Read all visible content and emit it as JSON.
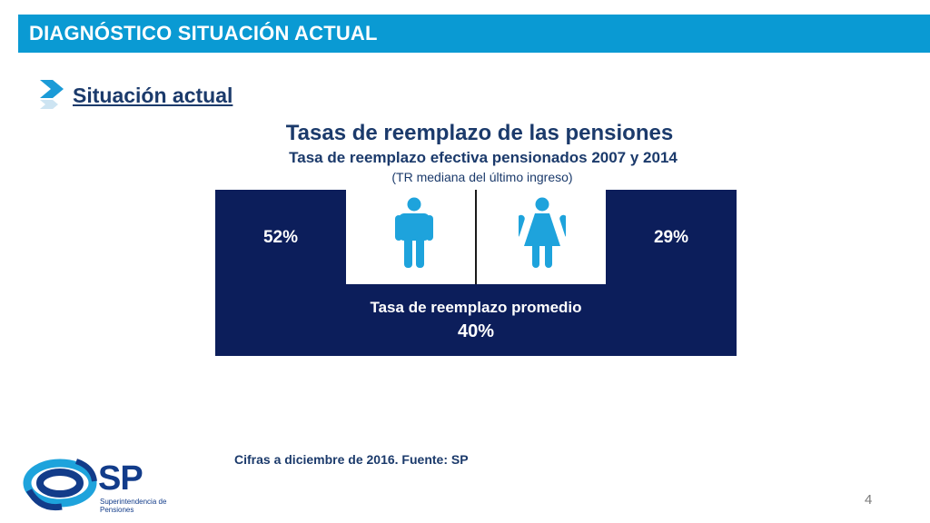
{
  "header": {
    "title": "DIAGNÓSTICO SITUACIÓN ACTUAL"
  },
  "section": {
    "title": "Situación actual",
    "icon": "chevron-right-icon"
  },
  "main": {
    "title": "Tasas de reemplazo de las pensiones",
    "subtitle": "Tasa de reemplazo efectiva pensionados 2007 y 2014",
    "note": "(TR mediana del último ingreso)"
  },
  "panel": {
    "men_rate": "52%",
    "women_rate": "29%",
    "men_icon": "man-icon",
    "women_icon": "woman-icon",
    "average_label": "Tasa de reemplazo promedio",
    "average_value": "40%"
  },
  "footer": {
    "source": "Cifras a diciembre de 2016. Fuente: SP",
    "page_number": "4"
  },
  "logo": {
    "acronym": "SP",
    "name": "Superintendencia de Pensiones"
  },
  "colors": {
    "header": "#0a9ad3",
    "panel": "#0c1e5b",
    "icon": "#1ea3dc",
    "text": "#1b3a6b"
  }
}
